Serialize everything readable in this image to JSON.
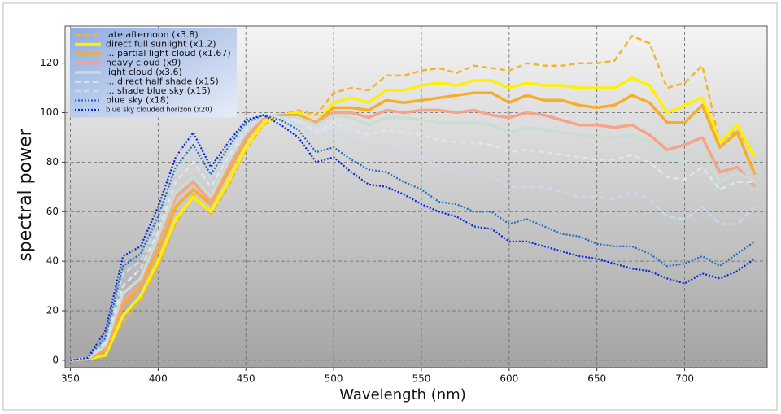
{
  "chart_data": {
    "type": "line",
    "x_label": "Wavelength (nm)",
    "y_label": "spectral power",
    "xlim": [
      347,
      747
    ],
    "ylim": [
      -3,
      135
    ],
    "xticks": [
      350,
      400,
      450,
      500,
      550,
      600,
      650,
      700
    ],
    "yticks": [
      0,
      20,
      40,
      60,
      80,
      100,
      120
    ],
    "grid": true,
    "legend": "upper left",
    "x": [
      350,
      360,
      370,
      380,
      390,
      400,
      410,
      420,
      430,
      440,
      450,
      460,
      470,
      480,
      490,
      500,
      510,
      520,
      530,
      540,
      550,
      560,
      570,
      580,
      590,
      600,
      610,
      620,
      630,
      640,
      650,
      660,
      670,
      680,
      690,
      700,
      710,
      720,
      730,
      740
    ],
    "series": [
      {
        "name": "late afternoon (x3.8)",
        "color": "#f3b52e",
        "style": "dashed",
        "values": [
          0,
          0.5,
          3,
          15,
          24,
          38,
          55,
          67,
          59,
          70,
          85,
          95,
          99,
          101,
          99,
          108,
          110,
          109,
          115,
          115,
          117,
          118,
          116,
          119,
          118,
          117,
          120,
          119,
          119,
          120,
          120,
          121,
          131,
          128,
          110,
          112,
          119,
          88,
          93,
          82
        ]
      },
      {
        "name": "direct full sunlight (x1.2)",
        "color": "#fff000",
        "style": "solid",
        "values": [
          0,
          0.5,
          2,
          18,
          26,
          40,
          57,
          66,
          60,
          72,
          86,
          96,
          99,
          100,
          96,
          104,
          106,
          104,
          109,
          109,
          111,
          112,
          111,
          113,
          113,
          110,
          112,
          111,
          111,
          110,
          110,
          110,
          114,
          111,
          100,
          103,
          106,
          88,
          95,
          82
        ]
      },
      {
        "name": "... partial light cloud (x1.67)",
        "color": "#f5ad2a",
        "style": "solid",
        "values": [
          0,
          0.6,
          4,
          22,
          30,
          44,
          62,
          69,
          63,
          76,
          89,
          98,
          99,
          99,
          96,
          102,
          102,
          101,
          105,
          104,
          105,
          106,
          107,
          108,
          108,
          104,
          107,
          105,
          105,
          103,
          102,
          103,
          107,
          104,
          96,
          96,
          103,
          86,
          92,
          75
        ]
      },
      {
        "name": "heavy cloud (x9)",
        "color": "#f4a488",
        "style": "solid",
        "values": [
          0,
          0.7,
          5,
          24,
          31,
          48,
          66,
          72,
          64,
          78,
          90,
          98,
          99,
          98,
          96,
          100,
          100,
          98,
          101,
          100,
          101,
          101,
          100,
          101,
          99,
          98,
          100,
          99,
          97,
          95,
          95,
          94,
          95,
          91,
          85,
          87,
          90,
          76,
          78,
          70
        ]
      },
      {
        "name": "light cloud (x3.6)",
        "color": "#c9ddd2",
        "style": "solid",
        "values": [
          0,
          0.8,
          6,
          27,
          33,
          50,
          68,
          74,
          66,
          80,
          92,
          99,
          98,
          98,
          95,
          99,
          98,
          95,
          98,
          98,
          97,
          96,
          96,
          96,
          95,
          92,
          94,
          93,
          92,
          91,
          90,
          90,
          91,
          88,
          82,
          80,
          84,
          72,
          76,
          72
        ]
      },
      {
        "name": "... direct half shade (x15)",
        "color": "#dbe6f2",
        "style": "dashed",
        "values": [
          0,
          0.8,
          7,
          30,
          37,
          52,
          72,
          80,
          70,
          82,
          93,
          99,
          98,
          97,
          92,
          96,
          93,
          91,
          93,
          92,
          91,
          89,
          88,
          88,
          87,
          84,
          85,
          84,
          83,
          82,
          81,
          81,
          83,
          80,
          74,
          73,
          78,
          69,
          72,
          72
        ]
      },
      {
        "name": "... shade blue sky (x15)",
        "color": "#c7d8f0",
        "style": "dashed",
        "values": [
          0,
          0.9,
          8,
          35,
          40,
          55,
          76,
          85,
          73,
          84,
          94,
          99,
          98,
          95,
          90,
          93,
          89,
          86,
          87,
          84,
          82,
          78,
          76,
          76,
          74,
          70,
          70,
          70,
          68,
          66,
          66,
          65,
          68,
          65,
          58,
          57,
          62,
          55,
          55,
          62
        ]
      },
      {
        "name": "blue sky (x18)",
        "color": "#1a6fc4",
        "style": "dotted",
        "values": [
          0,
          1,
          9,
          38,
          43,
          58,
          78,
          87,
          75,
          86,
          96,
          99,
          97,
          93,
          84,
          86,
          81,
          77,
          76,
          72,
          69,
          64,
          63,
          60,
          60,
          55,
          57,
          54,
          51,
          50,
          47,
          46,
          46,
          43,
          38,
          39,
          42,
          38,
          43,
          48
        ]
      },
      {
        "name": "blue sky clouded horizon (x20)",
        "color": "#0a28e0",
        "style": "dotted",
        "values": [
          0,
          1,
          12,
          42,
          46,
          62,
          82,
          92,
          78,
          88,
          97,
          99,
          95,
          90,
          80,
          82,
          76,
          71,
          70,
          67,
          63,
          60,
          58,
          54,
          53,
          48,
          48,
          46,
          44,
          42,
          41,
          39,
          37,
          36,
          33,
          31,
          35,
          33,
          36,
          41
        ]
      }
    ]
  }
}
